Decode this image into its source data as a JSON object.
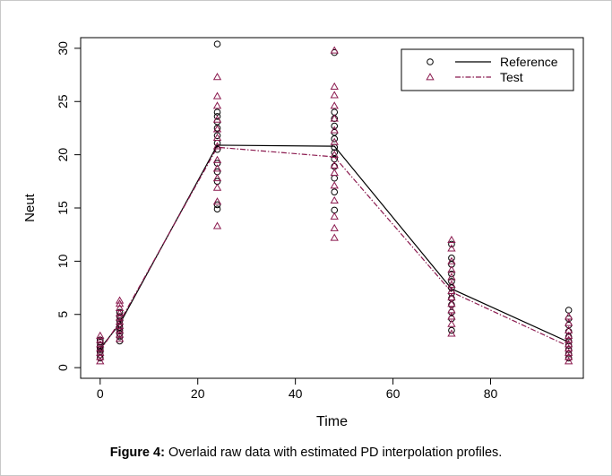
{
  "chart_data": {
    "type": "scatter",
    "xlabel": "Time",
    "ylabel": "Neut",
    "xlim": [
      -4,
      99
    ],
    "ylim": [
      -1,
      31
    ],
    "xticks": [
      0,
      20,
      40,
      60,
      80
    ],
    "yticks": [
      0,
      5,
      10,
      15,
      20,
      25,
      30
    ],
    "legend_position": "top-right",
    "series": [
      {
        "name": "Reference",
        "marker": "circle",
        "color": "#000000",
        "profile": {
          "x": [
            0,
            4,
            24,
            48,
            72,
            96
          ],
          "y": [
            1.8,
            4.1,
            20.9,
            20.8,
            7.4,
            2.4
          ]
        },
        "points": [
          [
            0,
            0.9
          ],
          [
            0,
            1.2
          ],
          [
            0,
            1.5
          ],
          [
            0,
            1.7
          ],
          [
            0,
            1.9
          ],
          [
            0,
            2.1
          ],
          [
            0,
            2.4
          ],
          [
            0,
            2.6
          ],
          [
            4,
            2.5
          ],
          [
            4,
            2.9
          ],
          [
            4,
            3.2
          ],
          [
            4,
            3.5
          ],
          [
            4,
            3.8
          ],
          [
            4,
            4.1
          ],
          [
            4,
            4.4
          ],
          [
            4,
            4.8
          ],
          [
            4,
            5.2
          ],
          [
            24,
            14.9
          ],
          [
            24,
            15.3
          ],
          [
            24,
            17.5
          ],
          [
            24,
            18.4
          ],
          [
            24,
            19.2
          ],
          [
            24,
            20.5
          ],
          [
            24,
            21.1
          ],
          [
            24,
            21.8
          ],
          [
            24,
            22.5
          ],
          [
            24,
            23.1
          ],
          [
            24,
            23.6
          ],
          [
            24,
            24.0
          ],
          [
            24,
            30.4
          ],
          [
            48,
            14.8
          ],
          [
            48,
            16.5
          ],
          [
            48,
            17.8
          ],
          [
            48,
            18.9
          ],
          [
            48,
            19.6
          ],
          [
            48,
            20.2
          ],
          [
            48,
            20.7
          ],
          [
            48,
            21.5
          ],
          [
            48,
            22.1
          ],
          [
            48,
            22.7
          ],
          [
            48,
            23.4
          ],
          [
            48,
            24.0
          ],
          [
            48,
            29.6
          ],
          [
            72,
            3.5
          ],
          [
            72,
            4.6
          ],
          [
            72,
            5.2
          ],
          [
            72,
            5.9
          ],
          [
            72,
            6.5
          ],
          [
            72,
            7.0
          ],
          [
            72,
            7.5
          ],
          [
            72,
            8.1
          ],
          [
            72,
            8.8
          ],
          [
            72,
            9.7
          ],
          [
            72,
            10.3
          ],
          [
            72,
            11.6
          ],
          [
            96,
            0.9
          ],
          [
            96,
            1.3
          ],
          [
            96,
            1.7
          ],
          [
            96,
            2.1
          ],
          [
            96,
            2.5
          ],
          [
            96,
            2.9
          ],
          [
            96,
            3.4
          ],
          [
            96,
            4.0
          ],
          [
            96,
            4.6
          ],
          [
            96,
            5.4
          ]
        ]
      },
      {
        "name": "Test",
        "marker": "triangle",
        "color": "#8b1a4f",
        "profile": {
          "x": [
            0,
            4,
            24,
            48,
            72,
            96
          ],
          "y": [
            1.6,
            4.3,
            20.7,
            19.8,
            7.1,
            2.0
          ]
        },
        "points": [
          [
            0,
            0.6
          ],
          [
            0,
            1.0
          ],
          [
            0,
            1.4
          ],
          [
            0,
            1.8
          ],
          [
            0,
            2.2
          ],
          [
            0,
            2.6
          ],
          [
            0,
            3.0
          ],
          [
            4,
            2.7
          ],
          [
            4,
            3.1
          ],
          [
            4,
            3.5
          ],
          [
            4,
            3.9
          ],
          [
            4,
            4.3
          ],
          [
            4,
            4.7
          ],
          [
            4,
            5.1
          ],
          [
            4,
            5.6
          ],
          [
            4,
            6.0
          ],
          [
            4,
            6.3
          ],
          [
            24,
            13.3
          ],
          [
            24,
            15.6
          ],
          [
            24,
            16.9
          ],
          [
            24,
            17.8
          ],
          [
            24,
            18.7
          ],
          [
            24,
            19.5
          ],
          [
            24,
            20.8
          ],
          [
            24,
            21.6
          ],
          [
            24,
            22.4
          ],
          [
            24,
            23.3
          ],
          [
            24,
            24.6
          ],
          [
            24,
            25.5
          ],
          [
            24,
            27.3
          ],
          [
            48,
            12.2
          ],
          [
            48,
            13.1
          ],
          [
            48,
            14.2
          ],
          [
            48,
            15.7
          ],
          [
            48,
            17.1
          ],
          [
            48,
            18.3
          ],
          [
            48,
            19.0
          ],
          [
            48,
            20.0
          ],
          [
            48,
            21.2
          ],
          [
            48,
            22.3
          ],
          [
            48,
            23.4
          ],
          [
            48,
            24.6
          ],
          [
            48,
            25.6
          ],
          [
            48,
            26.4
          ],
          [
            48,
            29.8
          ],
          [
            72,
            3.2
          ],
          [
            72,
            4.1
          ],
          [
            72,
            4.8
          ],
          [
            72,
            5.4
          ],
          [
            72,
            6.0
          ],
          [
            72,
            6.6
          ],
          [
            72,
            7.2
          ],
          [
            72,
            7.8
          ],
          [
            72,
            8.5
          ],
          [
            72,
            9.2
          ],
          [
            72,
            10.0
          ],
          [
            72,
            11.2
          ],
          [
            72,
            12.0
          ],
          [
            96,
            0.6
          ],
          [
            96,
            1.0
          ],
          [
            96,
            1.4
          ],
          [
            96,
            1.8
          ],
          [
            96,
            2.2
          ],
          [
            96,
            2.6
          ],
          [
            96,
            3.0
          ],
          [
            96,
            3.5
          ],
          [
            96,
            4.2
          ],
          [
            96,
            4.8
          ]
        ]
      }
    ]
  },
  "caption": {
    "label": "Figure 4:",
    "text": " Overlaid raw data with estimated PD interpolation profiles."
  }
}
